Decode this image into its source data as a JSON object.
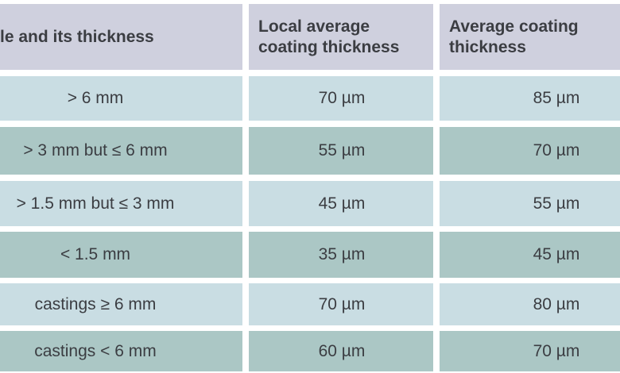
{
  "table": {
    "header": [
      [
        "le and its thickness"
      ],
      [
        "Local average",
        "coating thickness"
      ],
      [
        "Average coating",
        "thickness"
      ]
    ],
    "rows": [
      [
        "> 6 mm",
        "70 µm",
        "85 µm"
      ],
      [
        "> 3 mm but ≤ 6 mm",
        "55 µm",
        "70 µm"
      ],
      [
        "> 1.5 mm but ≤ 3 mm",
        "45 µm",
        "55 µm"
      ],
      [
        "< 1.5 mm",
        "35 µm",
        "45 µm"
      ],
      [
        "castings ≥ 6 mm",
        "70 µm",
        "80 µm"
      ],
      [
        "castings < 6 mm",
        "60 µm",
        "70 µm"
      ]
    ]
  }
}
